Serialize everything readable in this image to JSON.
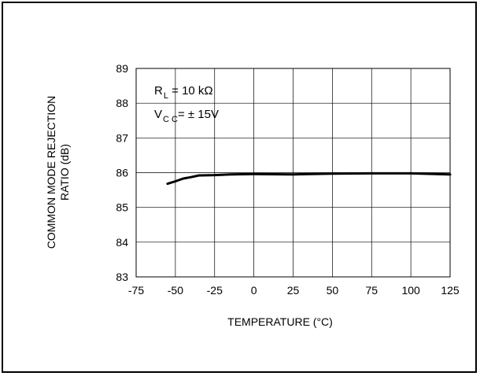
{
  "chart_data": {
    "type": "line",
    "title": "",
    "xlabel": "TEMPERATURE (°C)",
    "ylabel_lines": [
      "COMMON MODE REJECTION",
      "RATIO (dB)"
    ],
    "xlim": [
      -75,
      125
    ],
    "ylim": [
      83,
      89
    ],
    "x_ticks": [
      -75,
      -50,
      -25,
      0,
      25,
      50,
      75,
      100,
      125
    ],
    "y_ticks": [
      83,
      84,
      85,
      86,
      87,
      88,
      89
    ],
    "grid": true,
    "legend": "none",
    "annotations": [
      {
        "main": "R",
        "sub": "L",
        "rest": " = 10 kΩ"
      },
      {
        "main": "V",
        "sub": "C C",
        "rest": "= ± 15V"
      }
    ],
    "series": [
      {
        "x": [
          -55,
          -50,
          -45,
          -40,
          -35,
          -25,
          -15,
          0,
          25,
          50,
          75,
          100,
          125
        ],
        "y": [
          85.68,
          85.75,
          85.83,
          85.87,
          85.92,
          85.93,
          85.95,
          85.96,
          85.95,
          85.97,
          85.98,
          85.98,
          85.95
        ],
        "color": "#000000"
      }
    ]
  }
}
